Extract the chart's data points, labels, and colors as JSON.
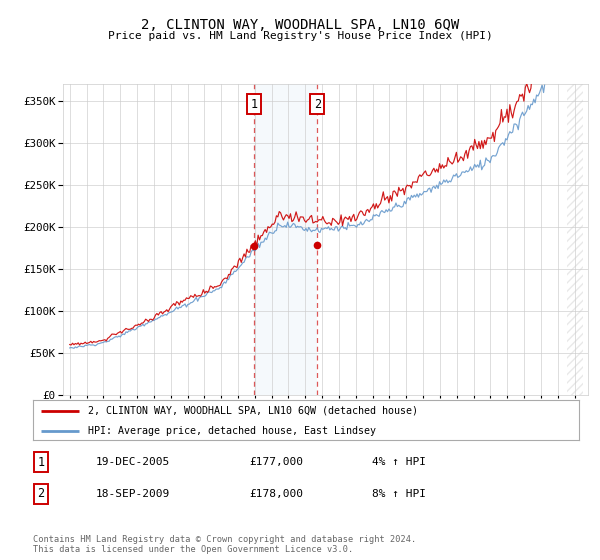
{
  "title": "2, CLINTON WAY, WOODHALL SPA, LN10 6QW",
  "subtitle": "Price paid vs. HM Land Registry's House Price Index (HPI)",
  "legend_line1": "2, CLINTON WAY, WOODHALL SPA, LN10 6QW (detached house)",
  "legend_line2": "HPI: Average price, detached house, East Lindsey",
  "sale1_date": "19-DEC-2005",
  "sale1_price": 177000,
  "sale1_hpi": "4%",
  "sale2_date": "18-SEP-2009",
  "sale2_price": 178000,
  "sale2_hpi": "8%",
  "footer": "Contains HM Land Registry data © Crown copyright and database right 2024.\nThis data is licensed under the Open Government Licence v3.0.",
  "ylim": [
    0,
    370000
  ],
  "yticks": [
    0,
    50000,
    100000,
    150000,
    200000,
    250000,
    300000,
    350000
  ],
  "red_color": "#cc0000",
  "blue_color": "#6699cc",
  "sale1_year": 2005.958,
  "sale2_year": 2009.708,
  "xstart": 1995.0,
  "xend": 2025.5
}
